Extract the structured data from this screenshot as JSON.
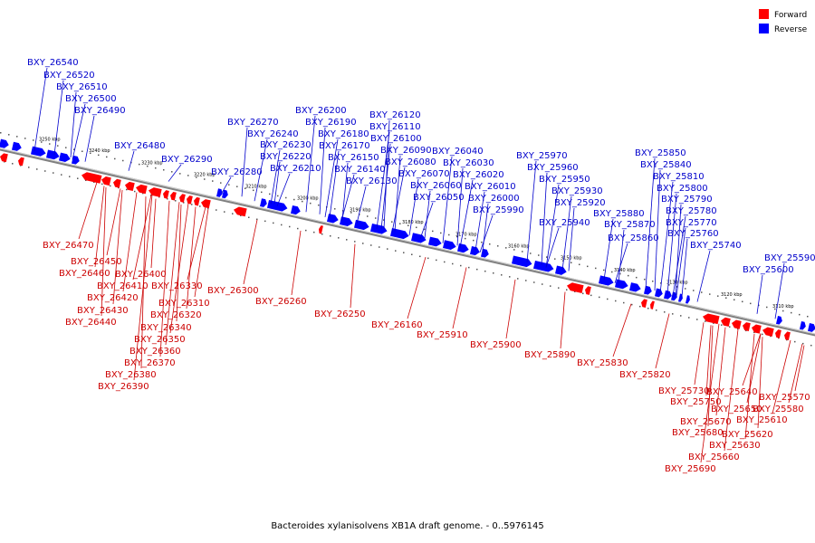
{
  "legend": {
    "items": [
      {
        "label": "Forward",
        "color": "#ff0000"
      },
      {
        "label": "Reverse",
        "color": "#0000ff"
      }
    ]
  },
  "caption": "Bacteroides xylanisolvens XB1A draft genome. - 0..5976145",
  "colors": {
    "forward": "#ff0000",
    "reverse": "#0000ff",
    "backbone": "#808080",
    "label_forward": "#cc0000",
    "label_reverse": "#0000cc"
  },
  "ticks": [
    "3250 kbp",
    "3240 kbp",
    "3230 kbp",
    "3220 kbp",
    "3210 kbp",
    "3200 kbp",
    "3190 kbp",
    "3180 kbp",
    "3170 kbp",
    "3160 kbp",
    "3150 kbp",
    "3140 kbp",
    "3130 kbp",
    "3120 kbp",
    "3110 kbp"
  ],
  "reverse_genes": [
    "BXY_26540",
    "BXY_26520",
    "BXY_26510",
    "BXY_26500",
    "BXY_26490",
    "BXY_26480",
    "BXY_26290",
    "BXY_26280",
    "BXY_26270",
    "BXY_26240",
    "BXY_26230",
    "BXY_26220",
    "BXY_26210",
    "BXY_26200",
    "BXY_26190",
    "BXY_26180",
    "BXY_26170",
    "BXY_26150",
    "BXY_26140",
    "BXY_26130",
    "BXY_26120",
    "BXY_26110",
    "BXY_26100",
    "BXY_26090",
    "BXY_26080",
    "BXY_26070",
    "BXY_26060",
    "BXY_26050",
    "BXY_26040",
    "BXY_26030",
    "BXY_26020",
    "BXY_26010",
    "BXY_26000",
    "BXY_25990",
    "BXY_25970",
    "BXY_25960",
    "BXY_25950",
    "BXY_25930",
    "BXY_25920",
    "BXY_25940",
    "BXY_25880",
    "BXY_25870",
    "BXY_25860",
    "BXY_25850",
    "BXY_25840",
    "BXY_25810",
    "BXY_25800",
    "BXY_25790",
    "BXY_25780",
    "BXY_25770",
    "BXY_25760",
    "BXY_25740",
    "BXY_25590",
    "BXY_25600"
  ],
  "forward_genes": [
    "BXY_26470",
    "BXY_26450",
    "BXY_26460",
    "BXY_26400",
    "BXY_26410",
    "BXY_26420",
    "BXY_26430",
    "BXY_26440",
    "BXY_26330",
    "BXY_26310",
    "BXY_26320",
    "BXY_26340",
    "BXY_26350",
    "BXY_26360",
    "BXY_26370",
    "BXY_26380",
    "BXY_26390",
    "BXY_26300",
    "BXY_26260",
    "BXY_26250",
    "BXY_26160",
    "BXY_25910",
    "BXY_25900",
    "BXY_25890",
    "BXY_25830",
    "BXY_25820",
    "BXY_25730",
    "BXY_25750",
    "BXY_25640",
    "BXY_25650",
    "BXY_25670",
    "BXY_25680",
    "BXY_25690",
    "BXY_25660",
    "BXY_25630",
    "BXY_25620",
    "BXY_25610",
    "BXY_25580",
    "BXY_25570"
  ]
}
